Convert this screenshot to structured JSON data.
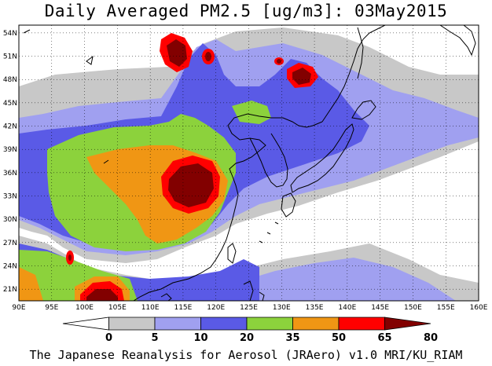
{
  "title": "Daily Averaged PM2.5 [ug/m3]: 03May2015",
  "credit": "The Japanese Reanalysis for Aerosol (JRAero) v1.0 MRI/KU_RIAM",
  "map": {
    "lon_range": [
      90,
      160
    ],
    "lat_range": [
      19.5,
      55
    ],
    "lon_ticks": [
      "90E",
      "95E",
      "100E",
      "105E",
      "110E",
      "115E",
      "120E",
      "125E",
      "130E",
      "135E",
      "140E",
      "145E",
      "150E",
      "155E",
      "160E"
    ],
    "lat_ticks": [
      "21N",
      "24N",
      "27N",
      "30N",
      "33N",
      "36N",
      "39N",
      "42N",
      "45N",
      "48N",
      "51N",
      "54N"
    ],
    "grid": true,
    "grid_style": "dotted"
  },
  "colorbar": {
    "levels": [
      "0",
      "5",
      "10",
      "20",
      "35",
      "50",
      "65",
      "80"
    ],
    "colors": [
      "#ffffff",
      "#c8c8c8",
      "#a0a0f0",
      "#5a5ae6",
      "#8cd23c",
      "#f09614",
      "#ff0000",
      "#820000"
    ]
  }
}
